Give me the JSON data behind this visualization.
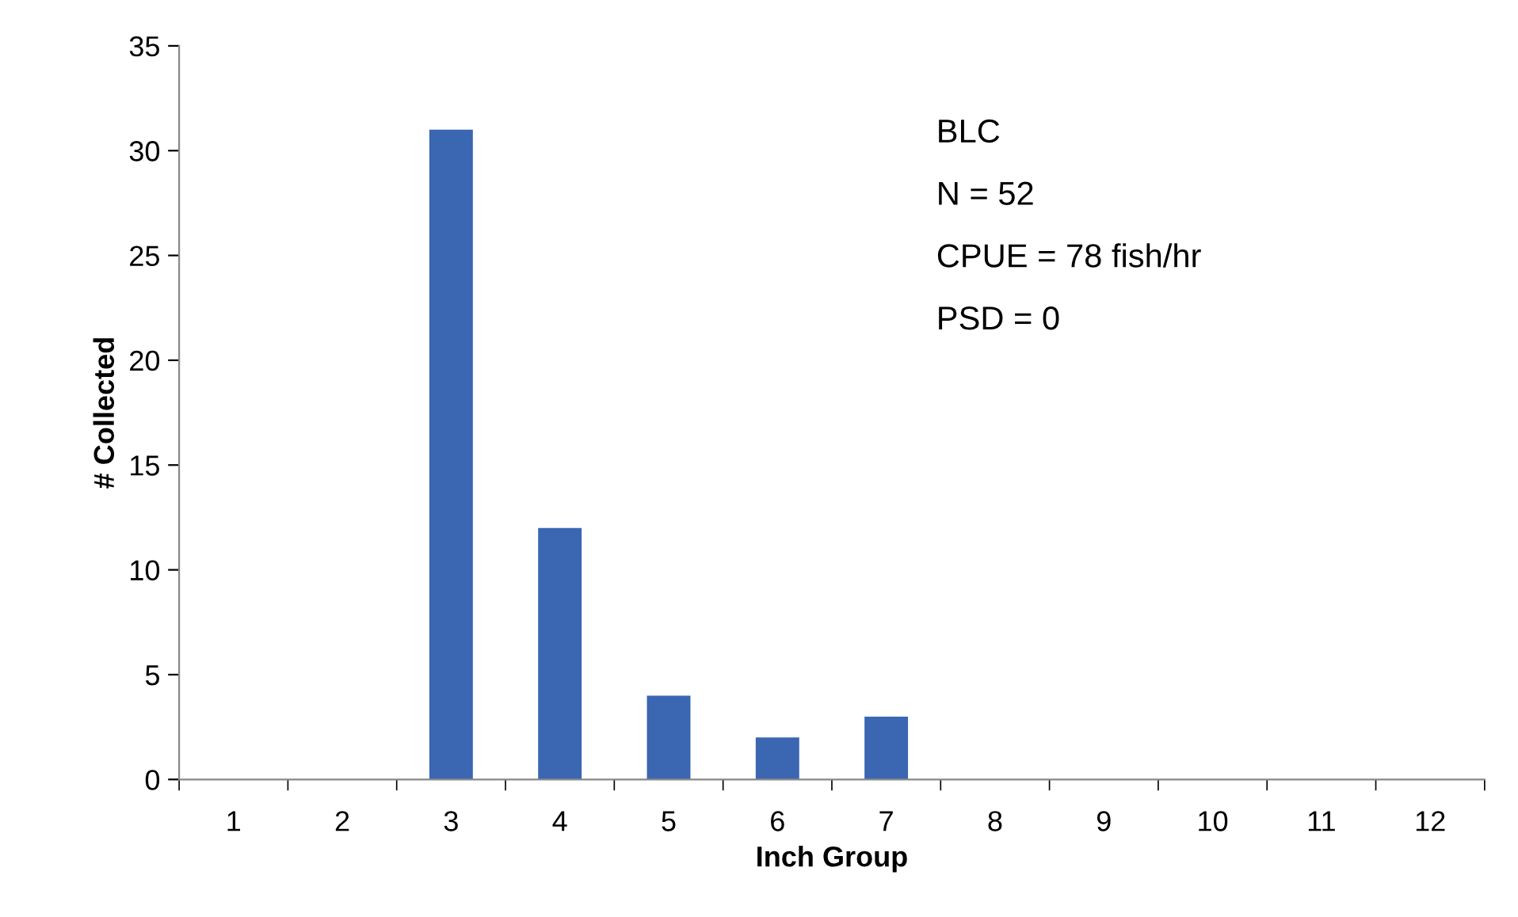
{
  "chart_data": {
    "type": "bar",
    "xlabel": "Inch Group",
    "ylabel": "# Collected",
    "categories": [
      "1",
      "2",
      "3",
      "4",
      "5",
      "6",
      "7",
      "8",
      "9",
      "10",
      "11",
      "12"
    ],
    "values": [
      0,
      0,
      31,
      12,
      4,
      2,
      3,
      0,
      0,
      0,
      0,
      0
    ],
    "color": "#3a66b2",
    "ylim": [
      0,
      35
    ],
    "yticks": [
      0,
      5,
      10,
      15,
      20,
      25,
      30,
      35
    ],
    "grid": false,
    "legend": false,
    "annotations": [
      "BLC",
      "N = 52",
      "CPUE = 78 fish/hr",
      "PSD = 0"
    ]
  }
}
